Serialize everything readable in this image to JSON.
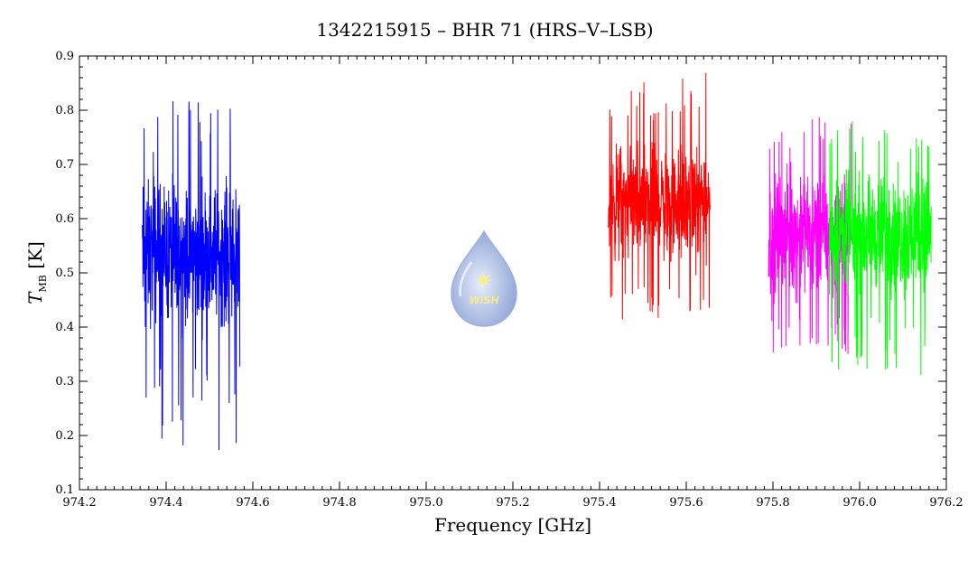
{
  "chart_data": {
    "type": "line",
    "title": "1342215915 – BHR 71 (HRS–V–LSB)",
    "xlabel": "Frequency [GHz]",
    "ylabel": {
      "symbol": "T",
      "subscript": "MB",
      "unit": "[K]"
    },
    "xlim": [
      974.2,
      976.2
    ],
    "ylim": [
      0.1,
      0.9
    ],
    "x_ticks": [
      974.2,
      974.4,
      974.6,
      974.8,
      975.0,
      975.2,
      975.4,
      975.6,
      975.8,
      976.0,
      976.2
    ],
    "x_tick_labels": [
      "974.2",
      "974.4",
      "974.6",
      "974.8",
      "975.0",
      "975.2",
      "975.4",
      "975.6",
      "975.8",
      "976.0",
      "976.2"
    ],
    "y_ticks": [
      0.1,
      0.2,
      0.3,
      0.4,
      0.5,
      0.6,
      0.7,
      0.8,
      0.9
    ],
    "y_tick_labels": [
      "0.1",
      "0.2",
      "0.3",
      "0.4",
      "0.5",
      "0.6",
      "0.7",
      "0.8",
      "0.9"
    ],
    "grid": false,
    "legend": "none",
    "series": [
      {
        "color": "#0000ff",
        "x_range": [
          974.345,
          974.57
        ],
        "typical_range": [
          0.35,
          0.72
        ],
        "min": 0.17,
        "max": 0.82
      },
      {
        "color": "#ff0000",
        "x_range": [
          975.42,
          975.655
        ],
        "typical_range": [
          0.48,
          0.78
        ],
        "min": 0.41,
        "max": 0.875
      },
      {
        "color": "#ff00ff",
        "x_range": [
          975.79,
          975.98
        ],
        "typical_range": [
          0.42,
          0.72
        ],
        "min": 0.35,
        "max": 0.79
      },
      {
        "color": "#00ff00",
        "x_range": [
          975.93,
          976.165
        ],
        "typical_range": [
          0.42,
          0.72
        ],
        "min": 0.31,
        "max": 0.78
      }
    ]
  },
  "watermark": {
    "text": "WISH",
    "icon": "water-drop-star-icon"
  }
}
